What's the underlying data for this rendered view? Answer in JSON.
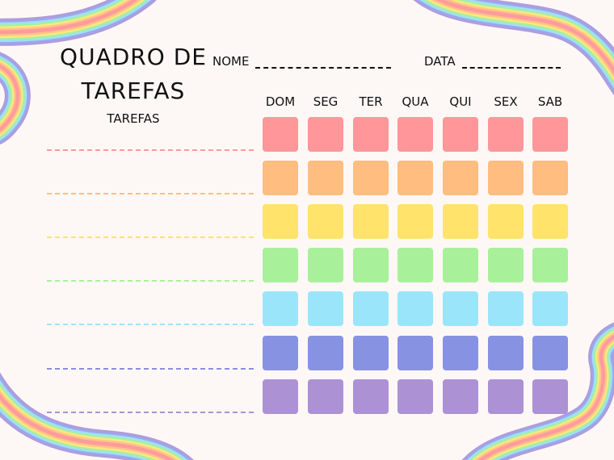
{
  "header": {
    "title_line1": "QUADRO DE",
    "title_line2": "TAREFAS",
    "subtitle": "TAREFAS",
    "name_label": "NOME",
    "date_label": "DATA"
  },
  "days": [
    "DOM",
    "SEG",
    "TER",
    "QUA",
    "QUI",
    "SEX",
    "SAB"
  ],
  "colors": {
    "rows": [
      "#ff9699",
      "#ffbd7f",
      "#ffe36b",
      "#a8f09a",
      "#9be5fb",
      "#8892e2",
      "#ad91d5"
    ],
    "task_lines": [
      "#ff9a96",
      "#ffbf7f",
      "#ffe36b",
      "#a8f09a",
      "#9be5fb",
      "#8a8fe0",
      "#b08fd6"
    ],
    "rainbow": [
      "#b09bdd",
      "#9aa8ea",
      "#9fdff7",
      "#a6efa7",
      "#fbe97a",
      "#ffc48a",
      "#ff9b9c"
    ]
  },
  "rows_count": 7
}
